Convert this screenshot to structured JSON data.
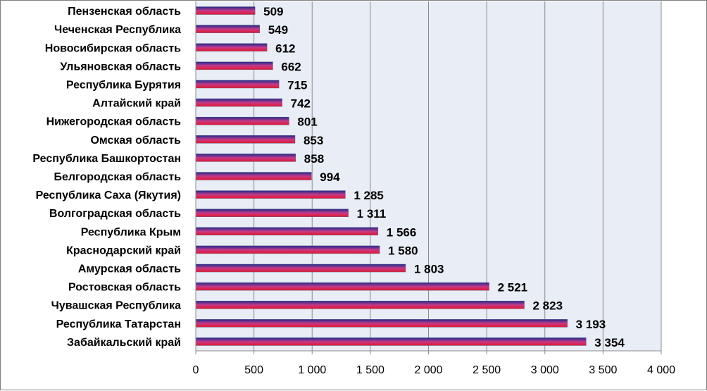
{
  "chart_data": {
    "type": "bar",
    "orientation": "horizontal",
    "categories": [
      "Пензенская область",
      "Чеченская Республика",
      "Новосибирская область",
      "Ульяновская область",
      "Республика Бурятия",
      "Алтайский край",
      "Нижегородская область",
      "Омская область",
      "Республика Башкортостан",
      "Белгородская область",
      "Республика Саха (Якутия)",
      "Волгоградская  область",
      "Республика Крым",
      "Краснодарский край",
      "Амурская область",
      "Ростовская область",
      "Чувашская  Республика",
      "Республика Татарстан",
      "Забайкальский край"
    ],
    "values": [
      509,
      549,
      612,
      662,
      715,
      742,
      801,
      853,
      858,
      994,
      1285,
      1311,
      1566,
      1580,
      1803,
      2521,
      2823,
      3193,
      3354
    ],
    "value_labels": [
      "509",
      "549",
      "612",
      "662",
      "715",
      "742",
      "801",
      "853",
      "858",
      "994",
      "1 285",
      "1 311",
      "1 566",
      "1 580",
      "1 803",
      "2 521",
      "2 823",
      "3 193",
      "3 354"
    ],
    "xlim": [
      0,
      4000
    ],
    "xticks": [
      0,
      500,
      1000,
      1500,
      2000,
      2500,
      3000,
      3500,
      4000
    ],
    "xtick_labels": [
      "0",
      "500",
      "1 000",
      "1 500",
      "2 000",
      "2 500",
      "3 000",
      "3 500",
      "4 000"
    ],
    "title": "",
    "xlabel": "",
    "ylabel": "",
    "grid": "vertical",
    "legend": "none",
    "colors": {
      "plot_background": "#e9edf5",
      "gridline": "#8c8c8c",
      "bar_top": "#1f2a8c",
      "bar_middle": "#c23a8a",
      "bar_bottom": "#e8162c"
    }
  }
}
